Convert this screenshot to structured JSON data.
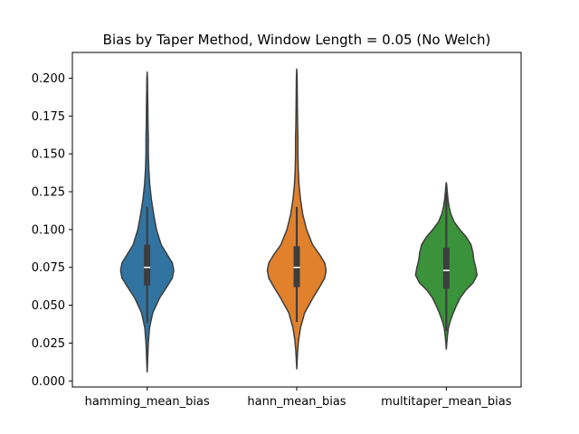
{
  "chart_data": {
    "type": "violin",
    "title": "Bias by Taper Method, Window Length = 0.05 (No Welch)",
    "xlabel": "",
    "ylabel": "",
    "ylim": [
      -0.004,
      0.217
    ],
    "yticks": [
      0.0,
      0.025,
      0.05,
      0.075,
      0.1,
      0.125,
      0.15,
      0.175,
      0.2
    ],
    "ytick_labels": [
      "0.000",
      "0.025",
      "0.050",
      "0.075",
      "0.100",
      "0.125",
      "0.150",
      "0.175",
      "0.200"
    ],
    "categories": [
      "hamming_mean_bias",
      "hann_mean_bias",
      "multitaper_mean_bias"
    ],
    "grid": false,
    "series": [
      {
        "category": "hamming_mean_bias",
        "color": "#3274a1",
        "median": 0.075,
        "q1": 0.063,
        "q3": 0.09,
        "whisker_low": 0.038,
        "whisker_high": 0.115,
        "density": [
          [
            0.006,
            0.0
          ],
          [
            0.01,
            0.6
          ],
          [
            0.018,
            1.5
          ],
          [
            0.025,
            2.5
          ],
          [
            0.035,
            5.0
          ],
          [
            0.045,
            12.0
          ],
          [
            0.055,
            27.0
          ],
          [
            0.062,
            42.0
          ],
          [
            0.068,
            54.0
          ],
          [
            0.073,
            57.0
          ],
          [
            0.078,
            54.0
          ],
          [
            0.083,
            44.0
          ],
          [
            0.09,
            30.0
          ],
          [
            0.1,
            20.0
          ],
          [
            0.11,
            14.0
          ],
          [
            0.12,
            9.0
          ],
          [
            0.13,
            5.5
          ],
          [
            0.14,
            3.5
          ],
          [
            0.15,
            2.5
          ],
          [
            0.16,
            2.5
          ],
          [
            0.17,
            1.8
          ],
          [
            0.18,
            1.5
          ],
          [
            0.19,
            1.0
          ],
          [
            0.2,
            0.6
          ],
          [
            0.204,
            0.0
          ]
        ]
      },
      {
        "category": "hann_mean_bias",
        "color": "#e1812c",
        "median": 0.075,
        "q1": 0.062,
        "q3": 0.089,
        "whisker_low": 0.039,
        "whisker_high": 0.115,
        "density": [
          [
            0.008,
            0.0
          ],
          [
            0.012,
            0.6
          ],
          [
            0.02,
            2.0
          ],
          [
            0.027,
            4.0
          ],
          [
            0.035,
            8.0
          ],
          [
            0.045,
            17.0
          ],
          [
            0.055,
            35.0
          ],
          [
            0.062,
            49.0
          ],
          [
            0.068,
            60.0
          ],
          [
            0.073,
            63.0
          ],
          [
            0.078,
            60.0
          ],
          [
            0.083,
            50.0
          ],
          [
            0.09,
            34.0
          ],
          [
            0.1,
            21.0
          ],
          [
            0.11,
            13.0
          ],
          [
            0.12,
            8.0
          ],
          [
            0.13,
            4.8
          ],
          [
            0.14,
            3.2
          ],
          [
            0.15,
            2.5
          ],
          [
            0.16,
            2.5
          ],
          [
            0.17,
            1.8
          ],
          [
            0.18,
            1.4
          ],
          [
            0.19,
            1.1
          ],
          [
            0.2,
            0.8
          ],
          [
            0.206,
            0.0
          ]
        ]
      },
      {
        "category": "multitaper_mean_bias",
        "color": "#3a923a",
        "median": 0.073,
        "q1": 0.061,
        "q3": 0.088,
        "whisker_low": 0.033,
        "whisker_high": 0.125,
        "density": [
          [
            0.021,
            0.0
          ],
          [
            0.025,
            1.0
          ],
          [
            0.03,
            2.5
          ],
          [
            0.035,
            4.5
          ],
          [
            0.04,
            9.0
          ],
          [
            0.045,
            15.0
          ],
          [
            0.05,
            22.0
          ],
          [
            0.055,
            30.0
          ],
          [
            0.06,
            42.0
          ],
          [
            0.065,
            58.0
          ],
          [
            0.07,
            66.0
          ],
          [
            0.075,
            63.0
          ],
          [
            0.08,
            59.0
          ],
          [
            0.085,
            57.0
          ],
          [
            0.09,
            53.0
          ],
          [
            0.095,
            43.0
          ],
          [
            0.1,
            29.0
          ],
          [
            0.105,
            17.0
          ],
          [
            0.11,
            10.0
          ],
          [
            0.115,
            6.0
          ],
          [
            0.12,
            3.5
          ],
          [
            0.125,
            2.0
          ],
          [
            0.13,
            0.6
          ],
          [
            0.131,
            0.0
          ]
        ]
      }
    ]
  }
}
